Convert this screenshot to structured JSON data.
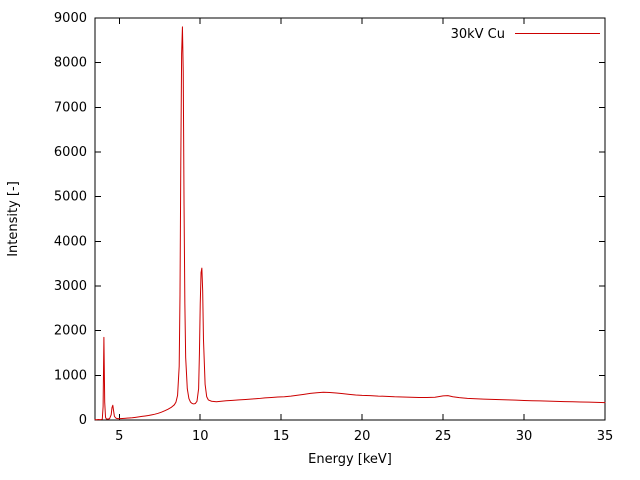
{
  "chart_data": {
    "type": "line",
    "title": "",
    "xlabel": "Energy [keV]",
    "ylabel": "Intensity [-]",
    "grid": false,
    "legend_position": "top-right-inside",
    "xlim": [
      3.5,
      35
    ],
    "ylim": [
      0,
      9000
    ],
    "xticks": [
      5,
      10,
      15,
      20,
      25,
      30,
      35
    ],
    "yticks": [
      0,
      1000,
      2000,
      3000,
      4000,
      5000,
      6000,
      7000,
      8000,
      9000
    ],
    "axis_color": "#000000",
    "background_color": "#ffffff",
    "legend": [
      {
        "name": "30kV Cu",
        "color": "#cc0000"
      }
    ],
    "series": [
      {
        "name": "30kV Cu",
        "color": "#cc0000",
        "points": [
          [
            3.5,
            8
          ],
          [
            3.6,
            6
          ],
          [
            3.7,
            10
          ],
          [
            3.8,
            8
          ],
          [
            3.9,
            12
          ],
          [
            3.95,
            20
          ],
          [
            4.0,
            300
          ],
          [
            4.05,
            1850
          ],
          [
            4.1,
            400
          ],
          [
            4.15,
            60
          ],
          [
            4.2,
            25
          ],
          [
            4.3,
            20
          ],
          [
            4.4,
            30
          ],
          [
            4.5,
            120
          ],
          [
            4.55,
            280
          ],
          [
            4.6,
            330
          ],
          [
            4.65,
            200
          ],
          [
            4.7,
            80
          ],
          [
            4.8,
            40
          ],
          [
            4.9,
            30
          ],
          [
            5.0,
            30
          ],
          [
            5.2,
            35
          ],
          [
            5.4,
            40
          ],
          [
            5.6,
            45
          ],
          [
            5.8,
            50
          ],
          [
            6.0,
            60
          ],
          [
            6.2,
            70
          ],
          [
            6.4,
            80
          ],
          [
            6.6,
            90
          ],
          [
            6.8,
            100
          ],
          [
            7.0,
            115
          ],
          [
            7.2,
            130
          ],
          [
            7.4,
            150
          ],
          [
            7.6,
            175
          ],
          [
            7.8,
            205
          ],
          [
            8.0,
            240
          ],
          [
            8.2,
            280
          ],
          [
            8.4,
            340
          ],
          [
            8.5,
            400
          ],
          [
            8.6,
            550
          ],
          [
            8.7,
            1200
          ],
          [
            8.75,
            2800
          ],
          [
            8.8,
            5800
          ],
          [
            8.85,
            8200
          ],
          [
            8.9,
            8800
          ],
          [
            8.95,
            7800
          ],
          [
            9.0,
            4800
          ],
          [
            9.05,
            2600
          ],
          [
            9.1,
            1400
          ],
          [
            9.2,
            700
          ],
          [
            9.3,
            480
          ],
          [
            9.4,
            400
          ],
          [
            9.5,
            370
          ],
          [
            9.6,
            360
          ],
          [
            9.7,
            370
          ],
          [
            9.8,
            420
          ],
          [
            9.9,
            700
          ],
          [
            9.95,
            1500
          ],
          [
            10.0,
            2600
          ],
          [
            10.05,
            3300
          ],
          [
            10.1,
            3400
          ],
          [
            10.15,
            2900
          ],
          [
            10.2,
            1800
          ],
          [
            10.3,
            800
          ],
          [
            10.4,
            520
          ],
          [
            10.5,
            450
          ],
          [
            10.7,
            420
          ],
          [
            11.0,
            410
          ],
          [
            11.3,
            420
          ],
          [
            11.6,
            430
          ],
          [
            12.0,
            440
          ],
          [
            12.4,
            450
          ],
          [
            12.8,
            460
          ],
          [
            13.2,
            470
          ],
          [
            13.6,
            480
          ],
          [
            14.0,
            495
          ],
          [
            14.4,
            505
          ],
          [
            14.8,
            515
          ],
          [
            15.2,
            520
          ],
          [
            15.6,
            535
          ],
          [
            16.0,
            555
          ],
          [
            16.4,
            575
          ],
          [
            16.8,
            595
          ],
          [
            17.2,
            610
          ],
          [
            17.6,
            620
          ],
          [
            18.0,
            615
          ],
          [
            18.4,
            605
          ],
          [
            18.8,
            590
          ],
          [
            19.2,
            575
          ],
          [
            19.6,
            560
          ],
          [
            20.0,
            550
          ],
          [
            20.5,
            545
          ],
          [
            21.0,
            535
          ],
          [
            21.5,
            530
          ],
          [
            22.0,
            520
          ],
          [
            22.5,
            515
          ],
          [
            23.0,
            510
          ],
          [
            23.5,
            505
          ],
          [
            24.0,
            505
          ],
          [
            24.5,
            510
          ],
          [
            25.0,
            540
          ],
          [
            25.3,
            545
          ],
          [
            25.6,
            520
          ],
          [
            26.0,
            500
          ],
          [
            26.5,
            485
          ],
          [
            27.0,
            475
          ],
          [
            27.5,
            468
          ],
          [
            28.0,
            462
          ],
          [
            28.5,
            455
          ],
          [
            29.0,
            450
          ],
          [
            29.5,
            445
          ],
          [
            30.0,
            438
          ],
          [
            30.5,
            432
          ],
          [
            31.0,
            428
          ],
          [
            31.5,
            422
          ],
          [
            32.0,
            418
          ],
          [
            32.5,
            412
          ],
          [
            33.0,
            408
          ],
          [
            33.5,
            404
          ],
          [
            34.0,
            400
          ],
          [
            34.5,
            395
          ],
          [
            35.0,
            390
          ]
        ]
      }
    ]
  }
}
